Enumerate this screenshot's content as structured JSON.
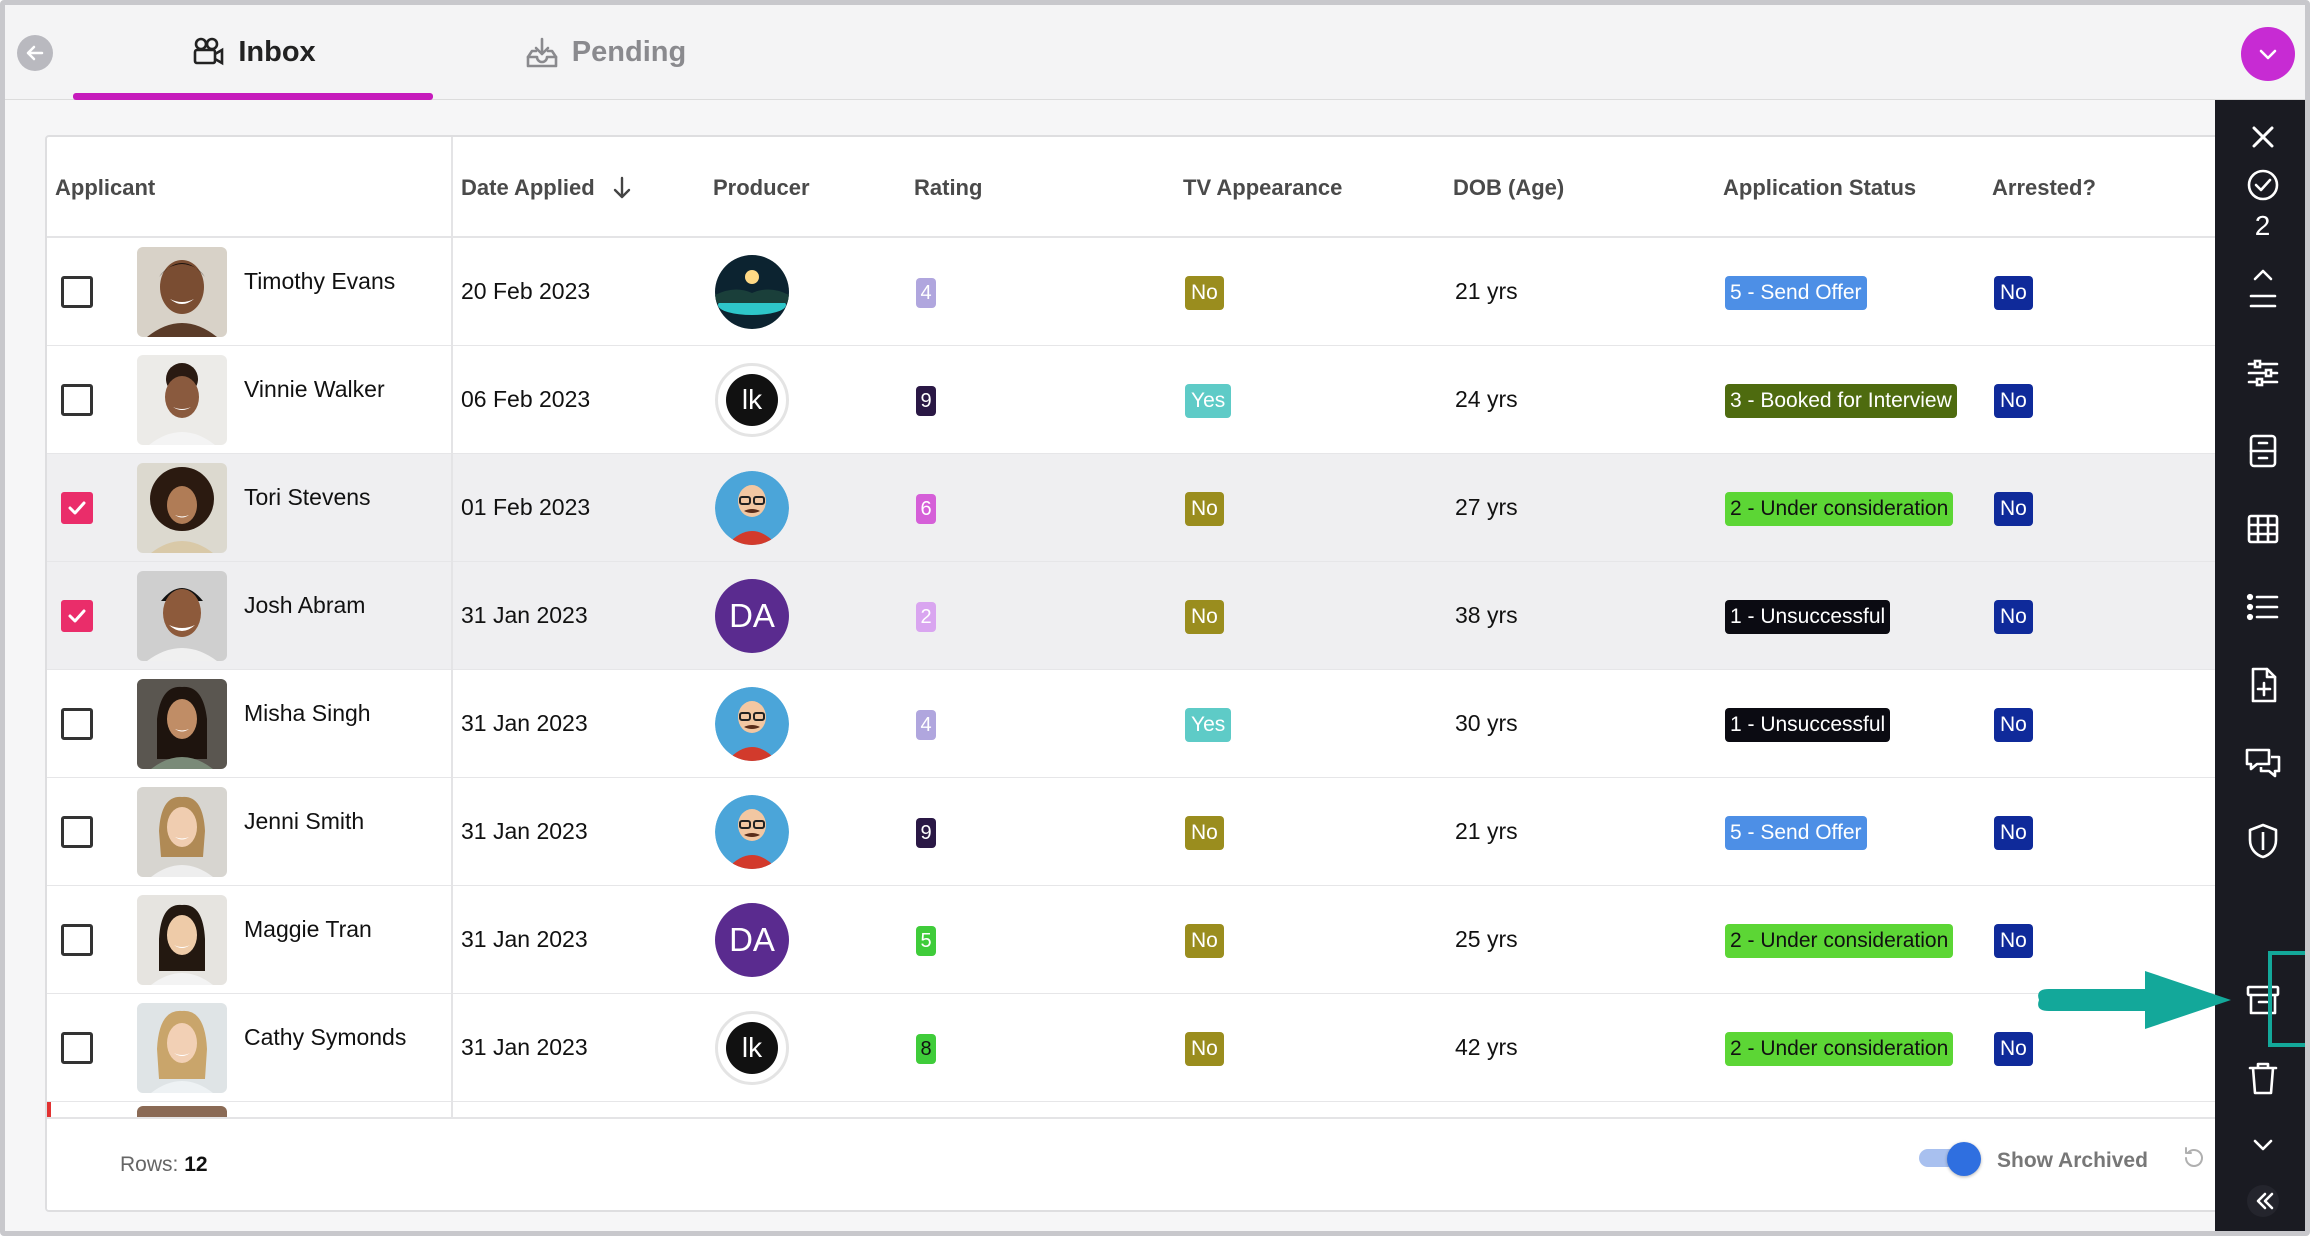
{
  "tabs": {
    "inbox": "Inbox",
    "pending": "Pending"
  },
  "table": {
    "columns": {
      "applicant": "Applicant",
      "date_applied": "Date Applied",
      "producer": "Producer",
      "rating": "Rating",
      "tv_appearance": "TV Appearance",
      "dob": "DOB (Age)",
      "status": "Application Status",
      "arrested": "Arrested?"
    },
    "rows": [
      {
        "name": "Timothy Evans",
        "date": "20 Feb 2023",
        "rating": "4",
        "tv": "No",
        "age": "21 yrs",
        "status": "5 - Send Offer",
        "arrested": "No"
      },
      {
        "name": "Vinnie Walker",
        "date": "06 Feb 2023",
        "rating": "9",
        "tv": "Yes",
        "age": "24 yrs",
        "status": "3 - Booked for Interview",
        "arrested": "No"
      },
      {
        "name": "Tori Stevens",
        "date": "01 Feb 2023",
        "rating": "6",
        "tv": "No",
        "age": "27 yrs",
        "status": "2 - Under consideration",
        "arrested": "No"
      },
      {
        "name": "Josh Abram",
        "date": "31 Jan 2023",
        "rating": "2",
        "tv": "No",
        "age": "38 yrs",
        "status": "1 - Unsuccessful",
        "arrested": "No"
      },
      {
        "name": "Misha Singh",
        "date": "31 Jan 2023",
        "rating": "4",
        "tv": "Yes",
        "age": "30 yrs",
        "status": "1 - Unsuccessful",
        "arrested": "No"
      },
      {
        "name": "Jenni Smith",
        "date": "31 Jan 2023",
        "rating": "9",
        "tv": "No",
        "age": "21 yrs",
        "status": "5 - Send Offer",
        "arrested": "No"
      },
      {
        "name": "Maggie Tran",
        "date": "31 Jan 2023",
        "rating": "5",
        "tv": "No",
        "age": "25 yrs",
        "status": "2 - Under consideration",
        "arrested": "No"
      },
      {
        "name": "Cathy Symonds",
        "date": "31 Jan 2023",
        "rating": "8",
        "tv": "No",
        "age": "42 yrs",
        "status": "2 - Under consideration",
        "arrested": "No"
      }
    ],
    "producers": {
      "lk": "lk",
      "da": "DA"
    }
  },
  "footer": {
    "rows_label": "Rows:",
    "rows_count": "12",
    "show_archived": "Show Archived"
  },
  "sidebar": {
    "selected_count": "2"
  },
  "colors": {
    "accent": "#c61bbc",
    "checkbox_checked": "#ea2d6a",
    "rail_bg": "#1a1b22",
    "highlight_teal": "#13a89a",
    "status_send_offer": "#4d8fe6",
    "status_booked": "#4e6b0f",
    "status_under_consideration": "#5cd635",
    "status_unsuccessful": "#0b0b12",
    "arrested_no": "#0f2a9a",
    "tv_no": "#9a8d1e",
    "tv_yes": "#5ecbc7"
  }
}
